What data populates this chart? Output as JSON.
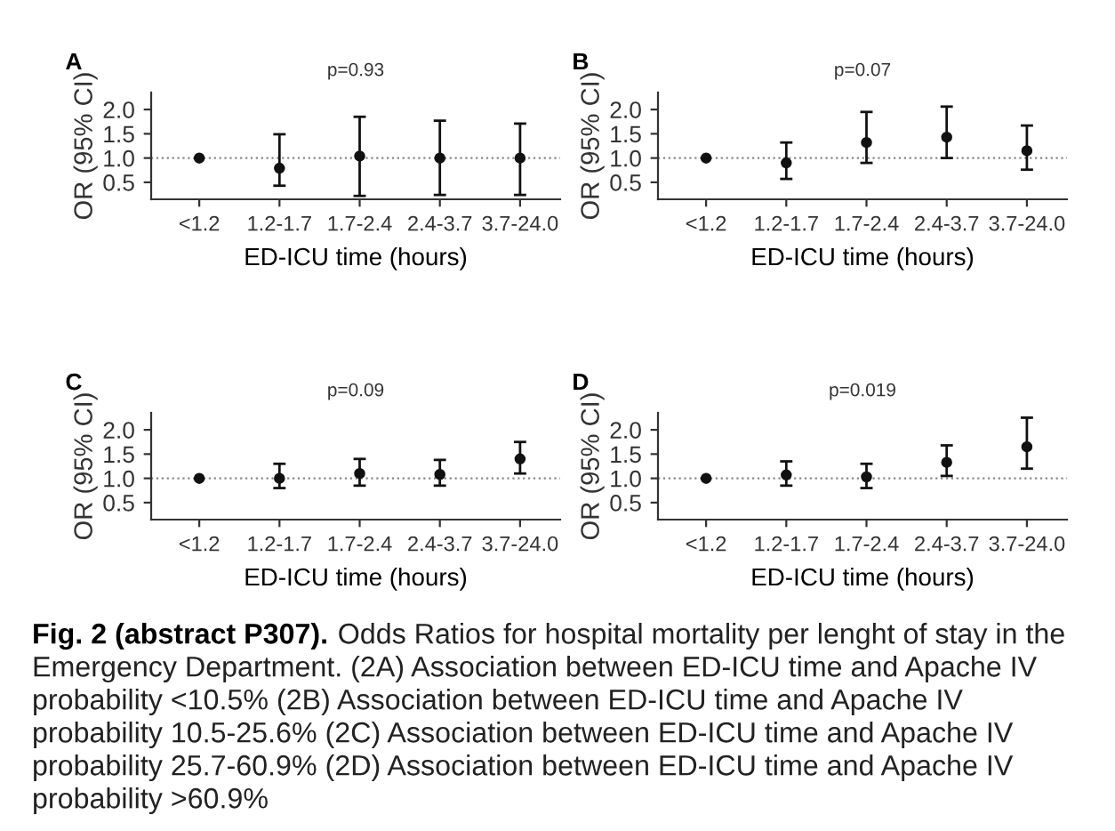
{
  "chart_data": [
    {
      "type": "scatter",
      "title": "A",
      "subtitle": "p=0.93",
      "xlabel": "ED-ICU time (hours)",
      "ylabel": "OR (95% CI)",
      "categories": [
        "<1.2",
        "1.2-1.7",
        "1.7-2.4",
        "2.4-3.7",
        "3.7-24.0"
      ],
      "series": [
        {
          "color": "#111111",
          "values": [
            1.0,
            0.79,
            1.04,
            1.0,
            1.0
          ],
          "errors": [
            null,
            [
              0.43,
              1.49
            ],
            [
              0.22,
              1.85
            ],
            [
              0.24,
              1.77
            ],
            [
              0.24,
              1.71
            ]
          ]
        }
      ],
      "ylim": [
        0.15,
        2.35
      ],
      "yticks": [
        {
          "value": 0.5,
          "label": "0.5"
        },
        {
          "value": 1.0,
          "label": "1.0"
        },
        {
          "value": 1.5,
          "label": "1.5"
        },
        {
          "value": 2.0,
          "label": "2.0"
        }
      ],
      "ref_lines": [
        {
          "axis": "y",
          "value": 1.0,
          "color": "#888888",
          "line_style": "dotted"
        }
      ],
      "marker": "circle",
      "grid": false,
      "legend": false,
      "annotations": [
        "Fig. 2 (abstract P307).",
        "Odds Ratios for hospital mortality per lenght of stay in the Emergency Department. (2A) Association between ED-ICU time and Apache IV probability <10.5% (2B) Association between ED-ICU time and Apache IV probability 10.5-25.6% (2C) Association between ED-ICU time and Apache IV probability 25.7-60.9% (2D) Association between ED-ICU time and Apache IV probability >60.9%"
      ]
    },
    {
      "type": "scatter",
      "title": "B",
      "subtitle": "p=0.07",
      "xlabel": "ED-ICU time (hours)",
      "ylabel": "OR (95% CI)",
      "categories": [
        "<1.2",
        "1.2-1.7",
        "1.7-2.4",
        "2.4-3.7",
        "3.7-24.0"
      ],
      "series": [
        {
          "color": "#111111",
          "values": [
            1.0,
            0.9,
            1.32,
            1.43,
            1.15
          ],
          "errors": [
            null,
            [
              0.57,
              1.32
            ],
            [
              0.9,
              1.95
            ],
            [
              1.0,
              2.06
            ],
            [
              0.76,
              1.67
            ]
          ]
        }
      ],
      "ylim": [
        0.15,
        2.35
      ],
      "yticks": [
        {
          "value": 0.5,
          "label": "0.5"
        },
        {
          "value": 1.0,
          "label": "1.0"
        },
        {
          "value": 1.5,
          "label": "1.5"
        },
        {
          "value": 2.0,
          "label": "2.0"
        }
      ],
      "ref_lines": [
        {
          "axis": "y",
          "value": 1.0,
          "color": "#888888",
          "line_style": "dotted"
        }
      ],
      "marker": "circle",
      "grid": false,
      "legend": false
    },
    {
      "type": "scatter",
      "title": "C",
      "subtitle": "p=0.09",
      "xlabel": "ED-ICU time (hours)",
      "ylabel": "OR (95% CI)",
      "categories": [
        "<1.2",
        "1.2-1.7",
        "1.7-2.4",
        "2.4-3.7",
        "3.7-24.0"
      ],
      "series": [
        {
          "color": "#111111",
          "values": [
            1.0,
            1.0,
            1.1,
            1.08,
            1.4
          ],
          "errors": [
            null,
            [
              0.8,
              1.3
            ],
            [
              0.85,
              1.4
            ],
            [
              0.85,
              1.38
            ],
            [
              1.1,
              1.75
            ]
          ]
        }
      ],
      "ylim": [
        0.15,
        2.35
      ],
      "yticks": [
        {
          "value": 0.5,
          "label": "0.5"
        },
        {
          "value": 1.0,
          "label": "1.0"
        },
        {
          "value": 1.5,
          "label": "1.5"
        },
        {
          "value": 2.0,
          "label": "2.0"
        }
      ],
      "ref_lines": [
        {
          "axis": "y",
          "value": 1.0,
          "color": "#888888",
          "line_style": "dotted"
        }
      ],
      "marker": "circle",
      "grid": false,
      "legend": false
    },
    {
      "type": "scatter",
      "title": "D",
      "subtitle": "p=0.019",
      "xlabel": "ED-ICU time (hours)",
      "ylabel": "OR (95% CI)",
      "categories": [
        "<1.2",
        "1.2-1.7",
        "1.7-2.4",
        "2.4-3.7",
        "3.7-24.0"
      ],
      "series": [
        {
          "color": "#111111",
          "values": [
            1.0,
            1.07,
            1.03,
            1.33,
            1.65
          ],
          "errors": [
            null,
            [
              0.85,
              1.35
            ],
            [
              0.8,
              1.3
            ],
            [
              1.05,
              1.68
            ],
            [
              1.2,
              2.25
            ]
          ]
        }
      ],
      "ylim": [
        0.15,
        2.35
      ],
      "yticks": [
        {
          "value": 0.5,
          "label": "0.5"
        },
        {
          "value": 1.0,
          "label": "1.0"
        },
        {
          "value": 1.5,
          "label": "1.5"
        },
        {
          "value": 2.0,
          "label": "2.0"
        }
      ],
      "ref_lines": [
        {
          "axis": "y",
          "value": 1.0,
          "color": "#888888",
          "line_style": "dotted"
        }
      ],
      "marker": "circle",
      "grid": false,
      "legend": false
    }
  ]
}
